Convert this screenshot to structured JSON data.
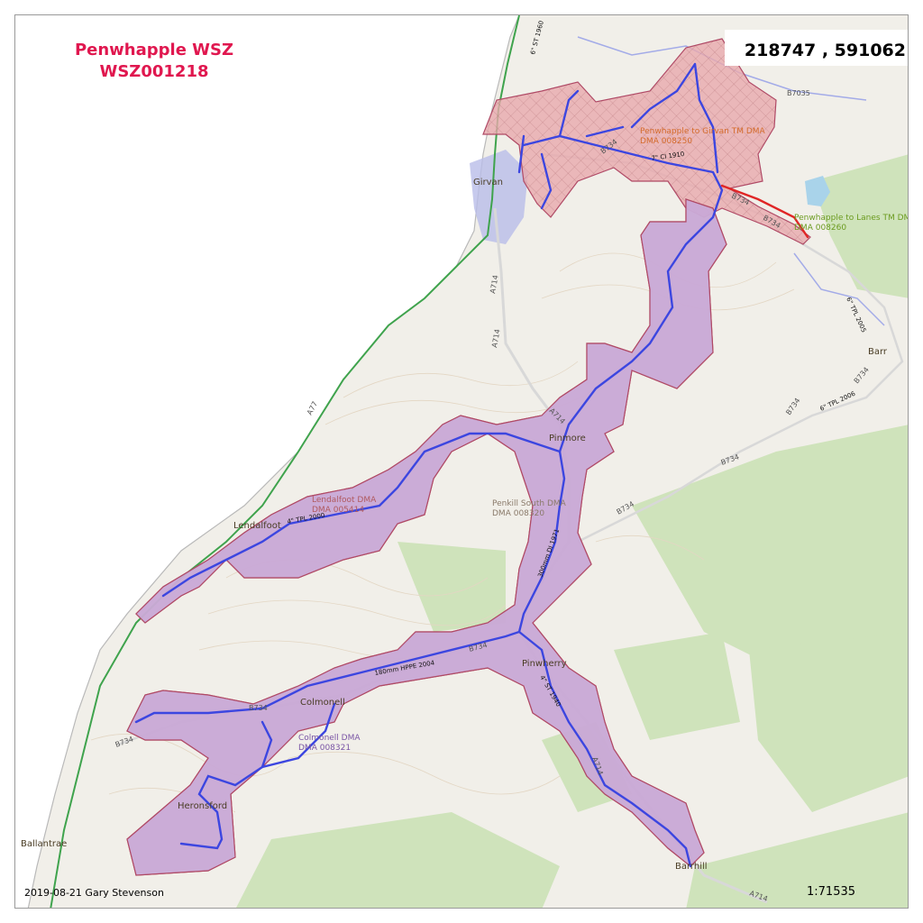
{
  "title": {
    "line1": "Penwhapple WSZ",
    "line2": "WSZ001218"
  },
  "coordinates": "218747 , 591062",
  "credit": "2019-08-21 Gary Stevenson",
  "scale": "1:71535",
  "colors": {
    "title": "#e0174f",
    "zone_red_fill": "#e9a9ac",
    "zone_purple_fill": "#c9a9d6",
    "zone_outline": "#b04a66",
    "main": "#3c46e0",
    "land": "#f1efe9",
    "sea": "#ffffff",
    "forest": "#cfe3bb",
    "coast_road": "#3fa34d"
  },
  "towns": {
    "girvan": "Girvan",
    "barr": "Barr",
    "pinmore": "Pinmore",
    "lendalfoot": "Lendalfoot",
    "pinwherry": "Pinwherry",
    "colmonell": "Colmonell",
    "heronsford": "Heronsford",
    "ballantrae": "Ballantrae",
    "barrhill": "Barrhill"
  },
  "dmas": {
    "girvan_tm": {
      "name": "Penwhapple to Girvan TM DMA",
      "code": "DMA 008250"
    },
    "lanes_tm": {
      "name": "Penwhapple to Lanes TM DMA",
      "code": "DMA 008260"
    },
    "lendalfoot": {
      "name": "Lendalfoot DMA",
      "code": "DMA 005414"
    },
    "penkill": {
      "name": "Penkill South DMA",
      "code": "DMA 008320"
    },
    "colmonell": {
      "name": "Colmonell DMA",
      "code": "DMA 008321"
    }
  },
  "roads": {
    "a77": "A77",
    "a714_a": "A714",
    "a714_b": "A714",
    "a714_c": "A714",
    "a714_d": "A714",
    "a714_e": "A714",
    "b734_a": "B734",
    "b734_b": "B734",
    "b734_c": "B734",
    "b734_d": "B734",
    "b734_e": "B734",
    "b734_f": "B734",
    "b734_g": "B734",
    "b734_h": "B734",
    "b734_i": "B734",
    "b7035": "B7035"
  },
  "mains": {
    "m1": "7\" CI 1910",
    "m2": "4\" TPL 2000",
    "m3": "300mm DI 1971",
    "m4": "180mm HPPE 2004",
    "m5": "4\" ST 1940",
    "m6": "6\" ST 1960",
    "m7": "6\" TPL 2005",
    "m8": "6\" TPL 2006"
  }
}
